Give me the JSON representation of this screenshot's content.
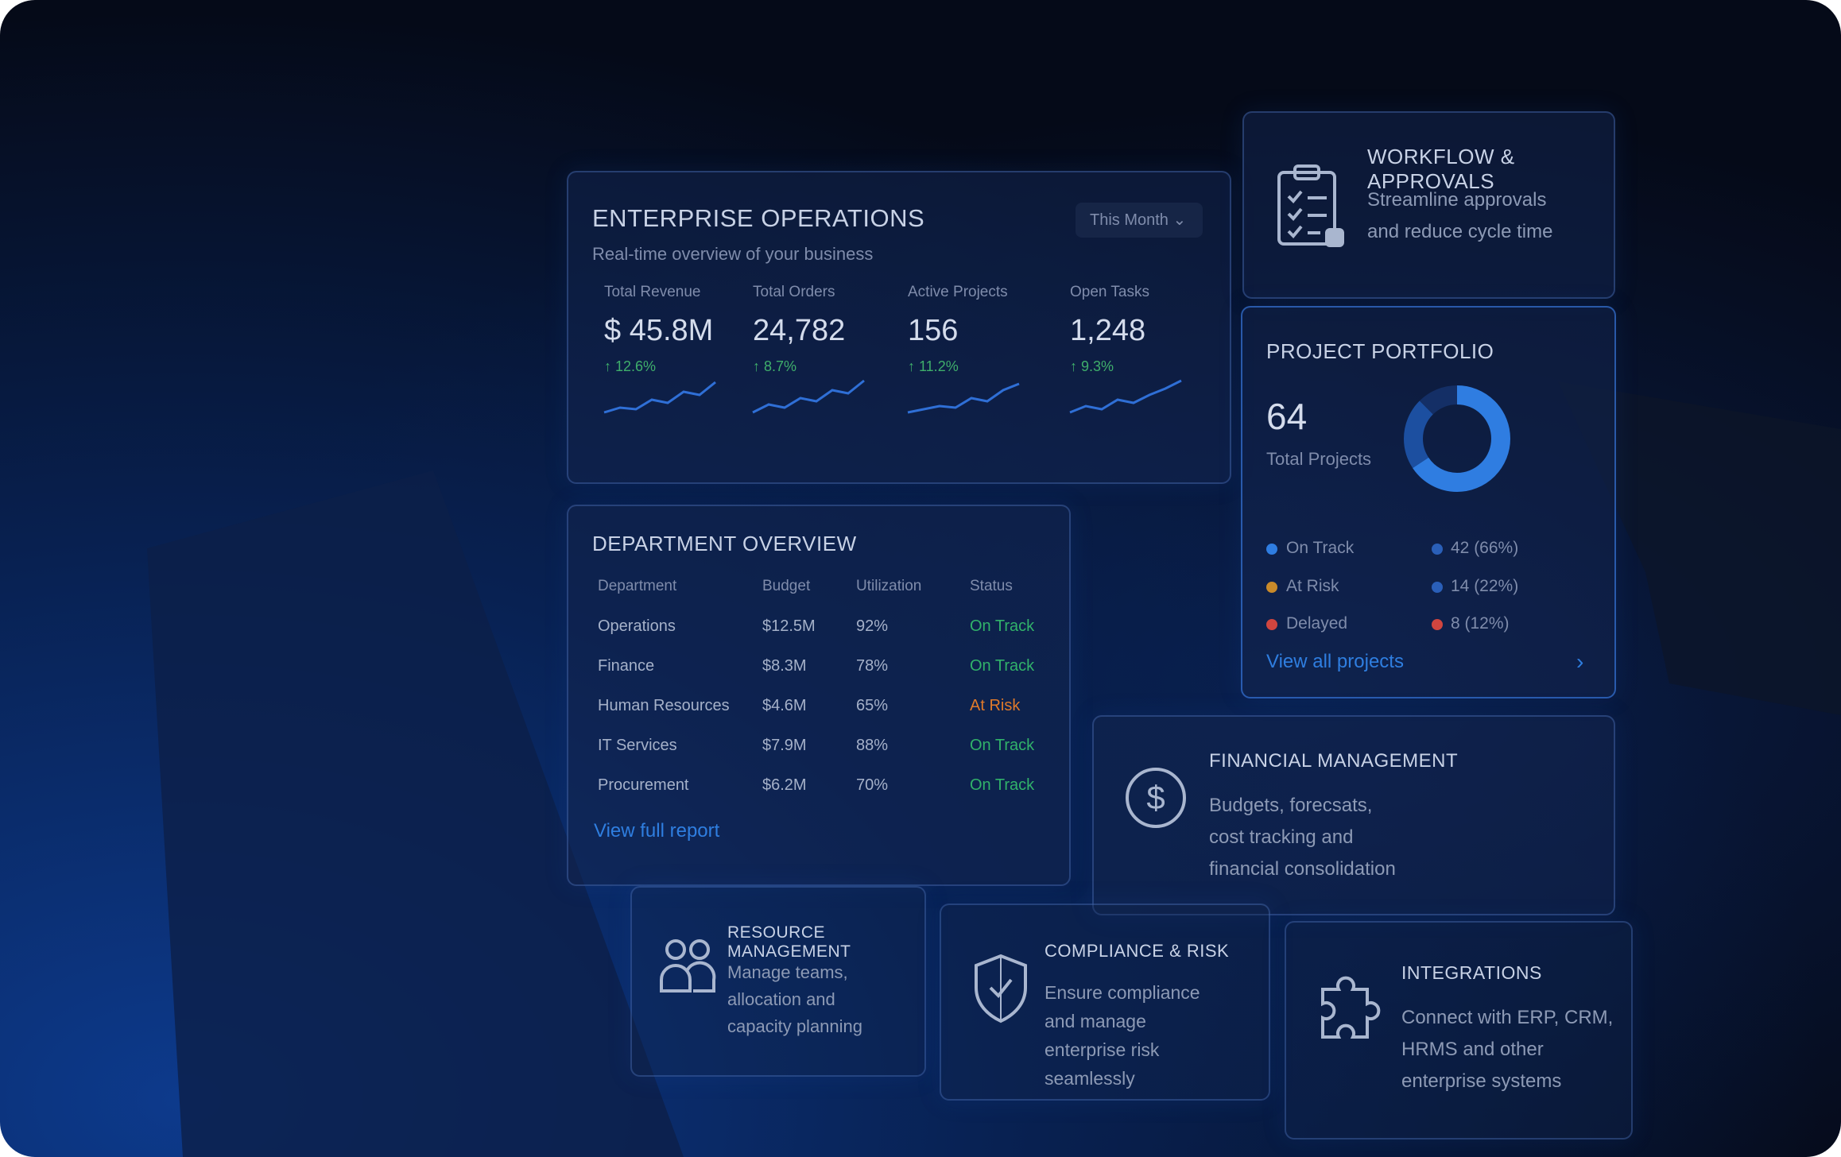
{
  "enterprise_operations": {
    "title": "ENTERPRISE OPERATIONS",
    "subtitle": "Real-time overview of your business",
    "period": "This Month",
    "kpis": [
      {
        "label": "Total Revenue",
        "value": "$ 45.8M",
        "change": "↑ 12.6%"
      },
      {
        "label": "Total Orders",
        "value": "24,782",
        "change": "↑ 8.7%"
      },
      {
        "label": "Active Projects",
        "value": "156",
        "change": "↑ 11.2%"
      },
      {
        "label": "Open Tasks",
        "value": "1,248",
        "change": "↑ 9.3%"
      }
    ]
  },
  "workflow": {
    "title": "WORKFLOW & APPROVALS",
    "description": "Streamline approvals and reduce cycle time"
  },
  "project_portfolio": {
    "title": "PROJECT PORTFOLIO",
    "total": "64",
    "total_label": "Total Projects",
    "items": [
      {
        "label": "On Track",
        "count": 42,
        "value_label": "42 (66%)"
      },
      {
        "label": "At Risk",
        "count": 14,
        "value_label": "14 (22%)"
      },
      {
        "label": "Delayed",
        "count": 8,
        "value_label": "8 (12%)"
      }
    ],
    "link": "View all projects"
  },
  "department_overview": {
    "title": "DEPARTMENT OVERVIEW",
    "columns": [
      "Department",
      "Budget",
      "Utilization",
      "Status"
    ],
    "rows": [
      [
        "Operations",
        "$12.5M",
        "92%",
        "On Track"
      ],
      [
        "Finance",
        "$8.3M",
        "78%",
        "On Track"
      ],
      [
        "Human Resources",
        "$4.6M",
        "65%",
        "At Risk"
      ],
      [
        "IT Services",
        "$7.9M",
        "88%",
        "On Track"
      ],
      [
        "Procurement",
        "$6.2M",
        "70%",
        "On Track"
      ]
    ],
    "link": "View full report"
  },
  "financial_management": {
    "title": "FINANCIAL MANAGEMENT",
    "description": "Budgets, forecsats, cost tracking and financial consolidation"
  },
  "resource_management": {
    "title": "RESOURCE MANAGEMENT",
    "description": "Manage teams, allocation and capacity planning"
  },
  "compliance_risk": {
    "title": "COMPLIANCE & RISK",
    "description": "Ensure compliance and manage enterprise risk seamlessly"
  },
  "integrations": {
    "title": "INTEGRATIONS",
    "description": "Connect with ERP, CRM, HRMS and other enterprise systems"
  }
}
